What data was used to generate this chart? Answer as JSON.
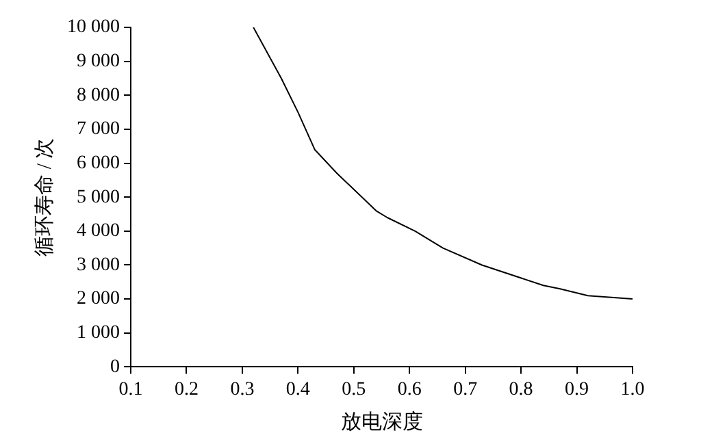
{
  "chart_data": {
    "type": "line",
    "xlabel": "放电深度",
    "ylabel": "循环寿命 / 次",
    "x": [
      0.32,
      0.37,
      0.4,
      0.43,
      0.47,
      0.54,
      0.56,
      0.61,
      0.66,
      0.73,
      0.84,
      0.87,
      0.92,
      1.0
    ],
    "series": [
      {
        "color": "#000000",
        "values": [
          10000,
          8500,
          7500,
          6400,
          5700,
          4600,
          4400,
          4000,
          3500,
          3000,
          2400,
          2300,
          2100,
          2000
        ]
      }
    ],
    "xlim": [
      0.1,
      1.0
    ],
    "xticks": [
      0.1,
      0.2,
      0.3,
      0.4,
      0.5,
      0.6,
      0.7,
      0.8,
      0.9,
      {
        "value": 1.0,
        "label": "1.0"
      }
    ],
    "ylim": [
      0,
      10000
    ],
    "yticks": [
      0,
      {
        "value": 1000,
        "label": "1 000"
      },
      {
        "value": 2000,
        "label": "2 000"
      },
      {
        "value": 3000,
        "label": "3 000"
      },
      {
        "value": 4000,
        "label": "4 000"
      },
      {
        "value": 5000,
        "label": "5 000"
      },
      {
        "value": 6000,
        "label": "6 000"
      },
      {
        "value": 7000,
        "label": "7 000"
      },
      {
        "value": 8000,
        "label": "8 000"
      },
      {
        "value": 9000,
        "label": "9 000"
      },
      {
        "value": 10000,
        "label": "10 000"
      }
    ],
    "grid": false,
    "legend": false
  }
}
